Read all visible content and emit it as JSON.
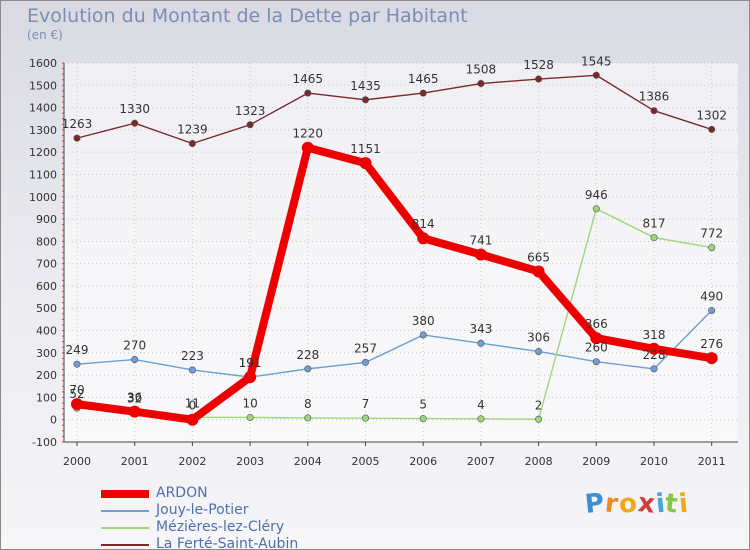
{
  "header": {
    "title": "Evolution du Montant de la Dette par Habitant",
    "subtitle": "(en €)"
  },
  "chart_data": {
    "type": "line",
    "title": "Evolution du Montant de la Dette par Habitant",
    "ylabel": "(en €)",
    "xlabel": "",
    "ylim": [
      -100,
      1600
    ],
    "yticks": [
      -100,
      0,
      100,
      200,
      300,
      400,
      500,
      600,
      700,
      800,
      900,
      1000,
      1100,
      1200,
      1300,
      1400,
      1500,
      1600
    ],
    "grid": true,
    "categories": [
      "2000",
      "2001",
      "2002",
      "2003",
      "2004",
      "2005",
      "2006",
      "2007",
      "2008",
      "2009",
      "2010",
      "2011"
    ],
    "series": [
      {
        "name": "ARDON",
        "color": "#ee0000",
        "values": [
          70,
          36,
          0,
          191,
          1220,
          1151,
          814,
          741,
          665,
          366,
          318,
          276
        ],
        "labels": [
          "70",
          "36",
          "0",
          "191",
          "1220",
          "1151",
          "814",
          "741",
          "665",
          "366",
          "318",
          "276"
        ]
      },
      {
        "name": "Jouy-le-Potier",
        "color": "#6e9fcf",
        "values": [
          249,
          270,
          223,
          191,
          228,
          257,
          380,
          343,
          306,
          260,
          228,
          490
        ],
        "labels": [
          "249",
          "270",
          "223",
          "191",
          "228",
          "257",
          "380",
          "343",
          "306",
          "260",
          "228",
          "490"
        ]
      },
      {
        "name": "Mézières-lez-Cléry",
        "color": "#9fd67a",
        "values": [
          52,
          32,
          11,
          10,
          8,
          7,
          5,
          4,
          2,
          946,
          817,
          772
        ],
        "labels": [
          "52",
          "32",
          "11",
          "10",
          "8",
          "7",
          "5",
          "4",
          "2",
          "946",
          "817",
          "772"
        ]
      },
      {
        "name": "La Ferté-Saint-Aubin",
        "color": "#7a2a2a",
        "values": [
          1263,
          1330,
          1239,
          1323,
          1465,
          1435,
          1465,
          1508,
          1528,
          1545,
          1386,
          1302
        ],
        "labels": [
          "1263",
          "1330",
          "1239",
          "1323",
          "1465",
          "1435",
          "1465",
          "1508",
          "1528",
          "1545",
          "1386",
          "1302"
        ]
      }
    ],
    "legend": [
      "ARDON",
      "Jouy-le-Potier",
      "Mézières-lez-Cléry",
      "La Ferté-Saint-Aubin"
    ],
    "legend_position": "bottom-left"
  },
  "logo": {
    "letters": [
      "P",
      "r",
      "o",
      "x",
      "i",
      "t",
      "i"
    ],
    "colors": [
      "#3b8fd6",
      "#ef8a1f",
      "#f0a81a",
      "#d33b3b",
      "#4aa3e0",
      "#8ac34a",
      "#f0a81a"
    ]
  }
}
